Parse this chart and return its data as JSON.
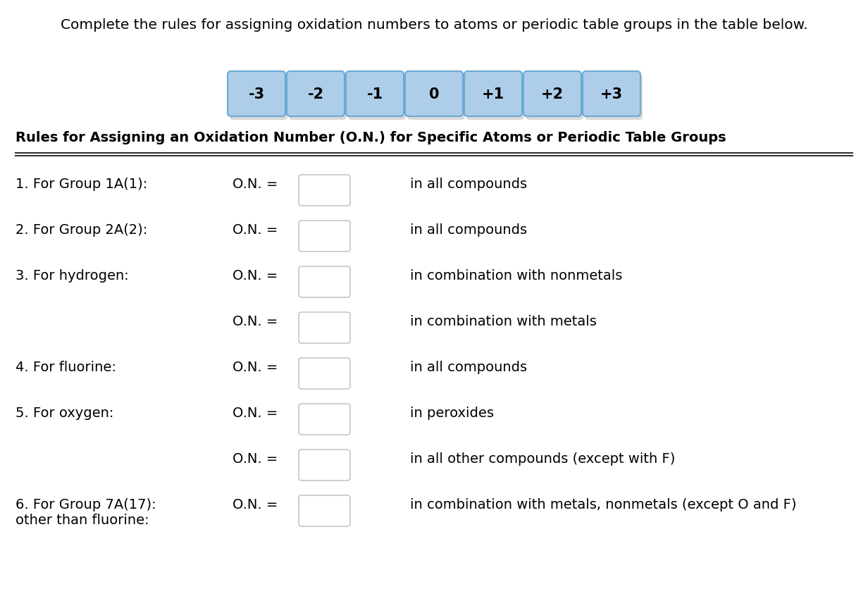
{
  "title": "Complete the rules for assigning oxidation numbers to atoms or periodic table groups in the table below.",
  "table_heading": "Rules for Assigning an Oxidation Number (O.N.) for Specific Atoms or Periodic Table Groups",
  "button_labels": [
    "-3",
    "-2",
    "-1",
    "0",
    "+1",
    "+2",
    "+3"
  ],
  "button_color": "#aecde8",
  "button_border_color": "#6aaad4",
  "button_text_color": "#000000",
  "rows": [
    {
      "label": "1. For Group 1A(1):",
      "label2": "",
      "on_eq": "O.N. =",
      "description": "in all compounds"
    },
    {
      "label": "2. For Group 2A(2):",
      "label2": "",
      "on_eq": "O.N. =",
      "description": "in all compounds"
    },
    {
      "label": "3. For hydrogen:",
      "label2": "",
      "on_eq": "O.N. =",
      "description": "in combination with nonmetals"
    },
    {
      "label": "",
      "label2": "",
      "on_eq": "O.N. =",
      "description": "in combination with metals"
    },
    {
      "label": "4. For fluorine:",
      "label2": "",
      "on_eq": "O.N. =",
      "description": "in all compounds"
    },
    {
      "label": "5. For oxygen:",
      "label2": "",
      "on_eq": "O.N. =",
      "description": "in peroxides"
    },
    {
      "label": "",
      "label2": "",
      "on_eq": "O.N. =",
      "description": "in all other compounds (except with F)"
    },
    {
      "label": "6. For Group 7A(17):",
      "label2": "   other than fluorine:",
      "on_eq": "O.N. =",
      "description": "in combination with metals, nonmetals (except O and F)"
    }
  ],
  "bg_color": "#ffffff",
  "text_color": "#000000",
  "box_color": "#ffffff",
  "box_border_color": "#bbbbbb",
  "title_fontsize": 14.5,
  "heading_fontsize": 14,
  "row_fontsize": 14,
  "btn_fontsize": 15
}
